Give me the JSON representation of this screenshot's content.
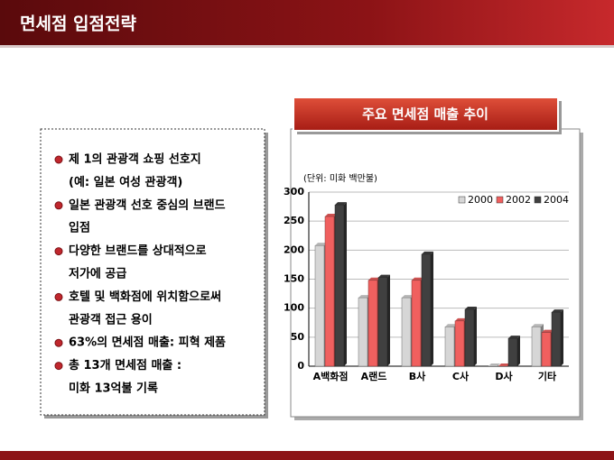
{
  "slide_title": "면세점 입점전략",
  "panel_title": "주요 면세점 매출 추이",
  "bullets": [
    [
      "제 1의 관광객 쇼핑 선호지",
      "(예: 일본 여성 관광객)"
    ],
    [
      "일본 관광객 선호 중심의 브랜드",
      "입점"
    ],
    [
      "다양한 브랜드를 상대적으로",
      "저가에 공급"
    ],
    [
      "호텔 및 백화점에 위치함으로써",
      "관광객 접근 용이"
    ],
    [
      "63%의 면세점 매출: 피혁 제품"
    ],
    [
      "총 13개 면세점 매출 :",
      "미화 13억불 기록"
    ]
  ],
  "chart_data": {
    "type": "bar",
    "subtitle": "(단위: 미화 백만불)",
    "categories": [
      "A백화점",
      "A랜드",
      "B사",
      "C사",
      "D사",
      "기타"
    ],
    "series": [
      {
        "name": "2000",
        "color": "#d6d6d6",
        "values": [
          208,
          118,
          118,
          68,
          0,
          68
        ]
      },
      {
        "name": "2002",
        "color": "#f0605f",
        "values": [
          258,
          148,
          148,
          78,
          0,
          58
        ]
      },
      {
        "name": "2004",
        "color": "#404040",
        "values": [
          278,
          153,
          193,
          98,
          48,
          93
        ]
      }
    ],
    "ylim": [
      0,
      300
    ],
    "yticks": [
      0,
      50,
      100,
      150,
      200,
      250,
      300
    ],
    "grid": true,
    "legend": "top-right"
  }
}
